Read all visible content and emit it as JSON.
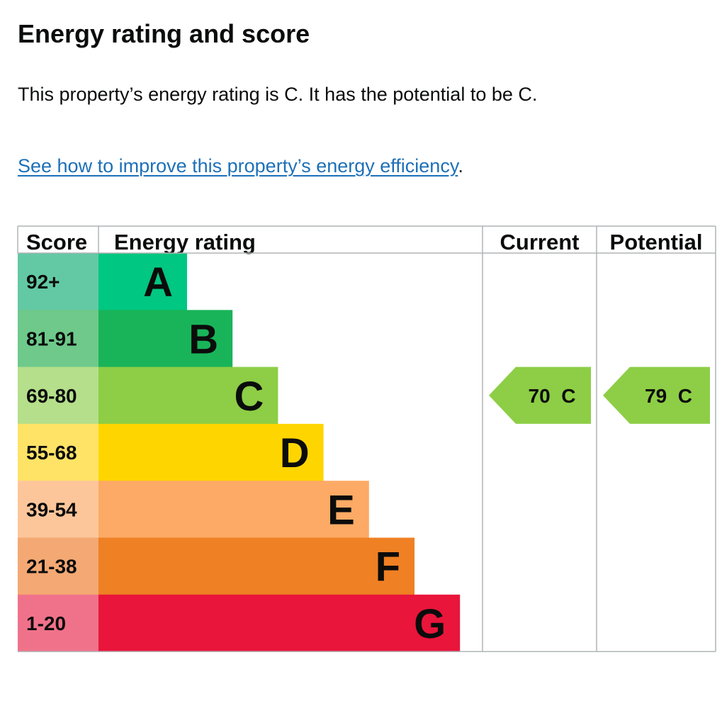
{
  "page": {
    "title": "Energy rating and score",
    "summary": "This property’s energy rating is C. It has the potential to be C.",
    "link_text": "See how to improve this property’s energy efficiency",
    "link_suffix": "."
  },
  "chart_data": {
    "type": "bar",
    "headers": {
      "score": "Score",
      "rating": "Energy rating",
      "current": "Current",
      "potential": "Potential"
    },
    "bands": [
      {
        "letter": "A",
        "score_range": "92+",
        "min": 92,
        "max": 100,
        "color": "#00c781",
        "score_bg": "#63c9a4"
      },
      {
        "letter": "B",
        "score_range": "81-91",
        "min": 81,
        "max": 91,
        "color": "#19b459",
        "score_bg": "#6ec98b"
      },
      {
        "letter": "C",
        "score_range": "69-80",
        "min": 69,
        "max": 80,
        "color": "#8dce46",
        "score_bg": "#b5df8a"
      },
      {
        "letter": "D",
        "score_range": "55-68",
        "min": 55,
        "max": 68,
        "color": "#ffd500",
        "score_bg": "#ffe366"
      },
      {
        "letter": "E",
        "score_range": "39-54",
        "min": 39,
        "max": 54,
        "color": "#fcaa65",
        "score_bg": "#fdc69a"
      },
      {
        "letter": "F",
        "score_range": "21-38",
        "min": 21,
        "max": 38,
        "color": "#ef8023",
        "score_bg": "#f4a873"
      },
      {
        "letter": "G",
        "score_range": "1-20",
        "min": 1,
        "max": 20,
        "color": "#e9153b",
        "score_bg": "#f0728a"
      }
    ],
    "current": {
      "score": 70,
      "band": "C",
      "label": "70  C"
    },
    "potential": {
      "score": 79,
      "band": "C",
      "label": "79  C"
    }
  }
}
